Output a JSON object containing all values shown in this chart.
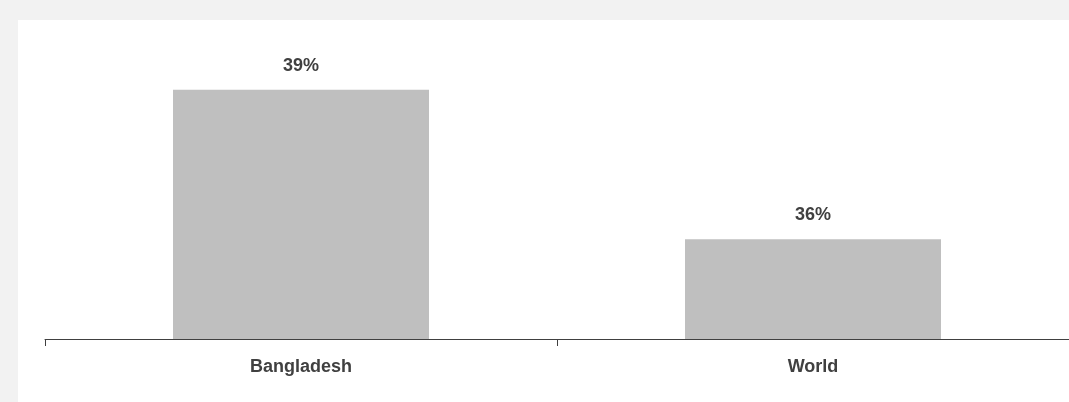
{
  "chart_data": {
    "type": "bar",
    "categories": [
      "Bangladesh",
      "World"
    ],
    "values": [
      39,
      36
    ],
    "value_labels": [
      "39%",
      "36%"
    ],
    "color": "#bfbfbf",
    "ylim": [
      34,
      40.4
    ],
    "tick_labels": "x"
  }
}
